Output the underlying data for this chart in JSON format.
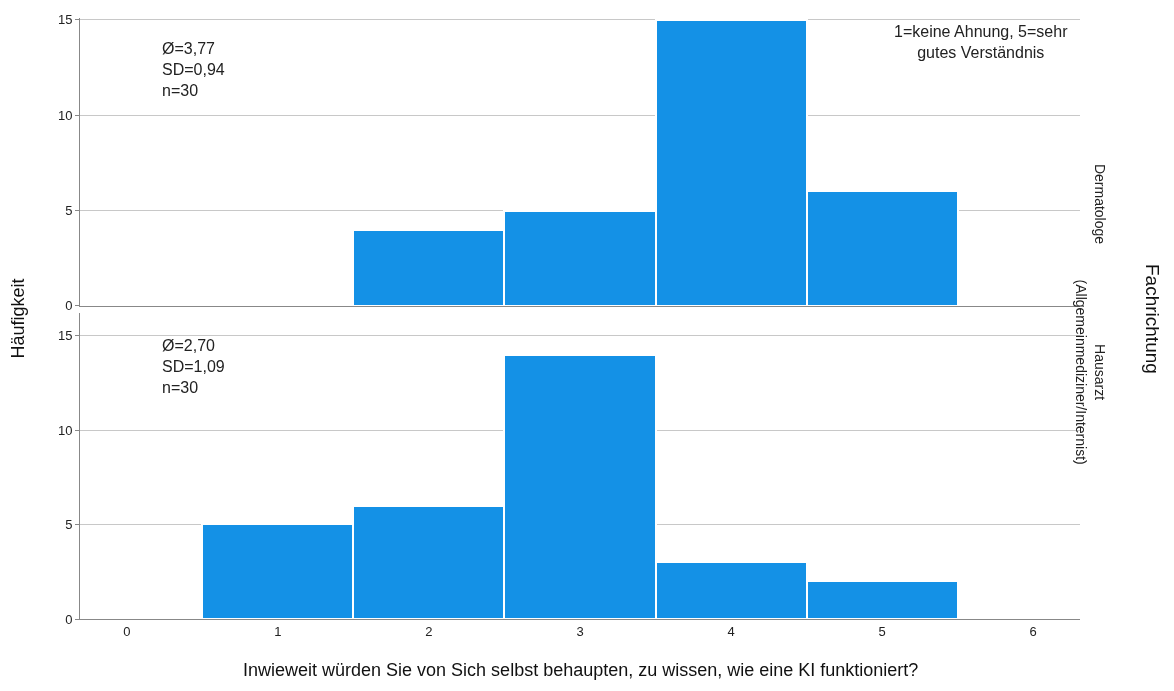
{
  "chart_data": [
    {
      "type": "histogram",
      "bins": [
        0.5,
        1.5,
        2.5,
        3.5,
        4.5,
        5.5
      ],
      "values": [
        0,
        4,
        5,
        15,
        6
      ],
      "color": "#1491e6",
      "xlim": [
        -0.31,
        6.31
      ],
      "xticks": [
        0,
        1,
        2,
        3,
        4,
        5,
        6
      ],
      "ylim": [
        0,
        15.1
      ],
      "yticks": [
        0,
        5,
        10,
        15
      ],
      "grid": "y",
      "tick_labels": "y",
      "ylabel": "Häufigkeit",
      "y2label": "Dermatologe",
      "annotations": [
        "Ø=3,77\nSD=0,94\nn=30",
        "1=keine Ahnung, 5=sehr\ngutes Verständnis",
        "Fachrichtung"
      ]
    },
    {
      "type": "histogram",
      "bins": [
        0.5,
        1.5,
        2.5,
        3.5,
        4.5,
        5.5
      ],
      "values": [
        5,
        6,
        14,
        3,
        2
      ],
      "color": "#1491e6",
      "xlim": [
        -0.31,
        6.31
      ],
      "xticks": [
        0,
        1,
        2,
        3,
        4,
        5,
        6
      ],
      "ylim": [
        0,
        16.2
      ],
      "yticks": [
        0,
        5,
        10,
        15
      ],
      "grid": "y",
      "xlabel": "Inwieweit würden Sie von Sich selbst behaupten, zu wissen, wie eine KI funktioniert?",
      "y2label": "Hausarzt\n(Allgemeinmediziner/Internist)",
      "annotations": [
        "Ø=2,70\nSD=1,09\nn=30"
      ]
    }
  ]
}
